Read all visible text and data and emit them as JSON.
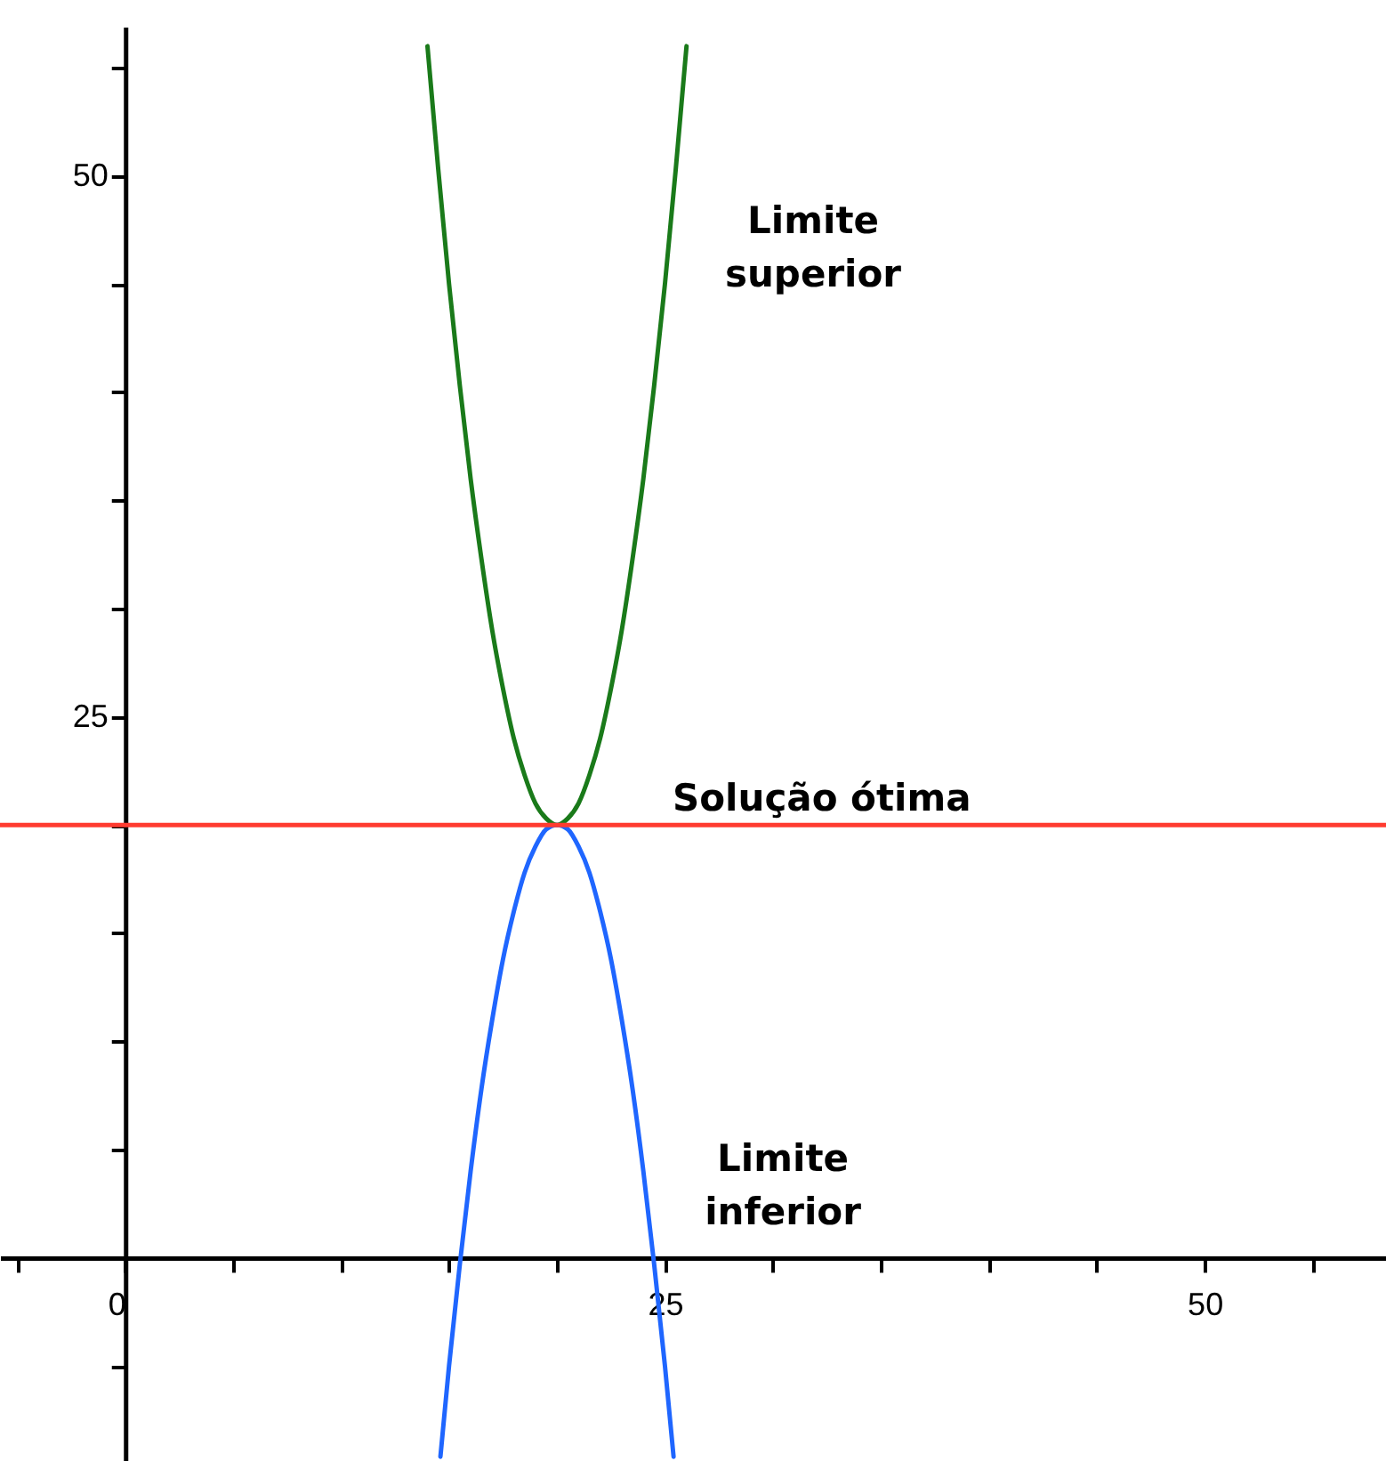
{
  "chart_data": {
    "type": "line",
    "xlim": [
      -5.8,
      58.4
    ],
    "ylim": [
      -9.4,
      56.9
    ],
    "xticks": [
      {
        "value": -5,
        "label": null
      },
      0,
      {
        "value": 5,
        "label": null
      },
      {
        "value": 10,
        "label": null
      },
      {
        "value": 15,
        "label": null
      },
      {
        "value": 20,
        "label": null
      },
      25,
      {
        "value": 30,
        "label": null
      },
      {
        "value": 35,
        "label": null
      },
      {
        "value": 40,
        "label": null
      },
      {
        "value": 45,
        "label": null
      },
      50,
      {
        "value": 55,
        "label": null
      }
    ],
    "yticks": [
      {
        "value": -5,
        "label": null
      },
      {
        "value": 5,
        "label": null
      },
      {
        "value": 10,
        "label": null
      },
      {
        "value": 15,
        "label": null
      },
      {
        "value": 20,
        "label": null
      },
      25,
      {
        "value": 30,
        "label": null
      },
      {
        "value": 35,
        "label": null
      },
      {
        "value": 40,
        "label": null
      },
      {
        "value": 45,
        "label": null
      },
      50,
      {
        "value": 55,
        "label": null
      }
    ],
    "grid": false,
    "series": [
      {
        "name": "Limite superior",
        "color": "#1a7a1a",
        "x": [
          14,
          14.5,
          15,
          15.5,
          16,
          16.5,
          17,
          17.5,
          18,
          18.5,
          19,
          19.5,
          20,
          20.5,
          21,
          21.5,
          22,
          22.5,
          23,
          23.5,
          24,
          24.5,
          25,
          25.5,
          26
        ],
        "values": [
          56,
          50.3,
          45,
          40.3,
          36,
          32.3,
          29,
          26.3,
          24,
          22.3,
          21,
          20.3,
          20,
          20.3,
          21,
          22.3,
          24,
          26.3,
          29,
          32.3,
          36,
          40.3,
          45,
          50.3,
          56
        ]
      },
      {
        "name": "Limite inferior",
        "color": "#1f66ff",
        "x": [
          14.6,
          15,
          15.5,
          16,
          16.5,
          17,
          17.5,
          18,
          18.5,
          19,
          19.5,
          20,
          20.5,
          21,
          21.5,
          22,
          22.5,
          23,
          23.5,
          24,
          24.5,
          25,
          25.4
        ],
        "values": [
          -9.2,
          -5,
          -0.3,
          4,
          7.8,
          11,
          13.8,
          16,
          17.8,
          19,
          19.8,
          20,
          19.8,
          19,
          17.8,
          16,
          13.8,
          11,
          7.8,
          4,
          -0.3,
          -5,
          -9.2
        ]
      }
    ],
    "ref_lines": [
      {
        "axis": "y",
        "value": 20,
        "color": "#ff3b30",
        "label": "Solução ótima"
      }
    ]
  }
}
